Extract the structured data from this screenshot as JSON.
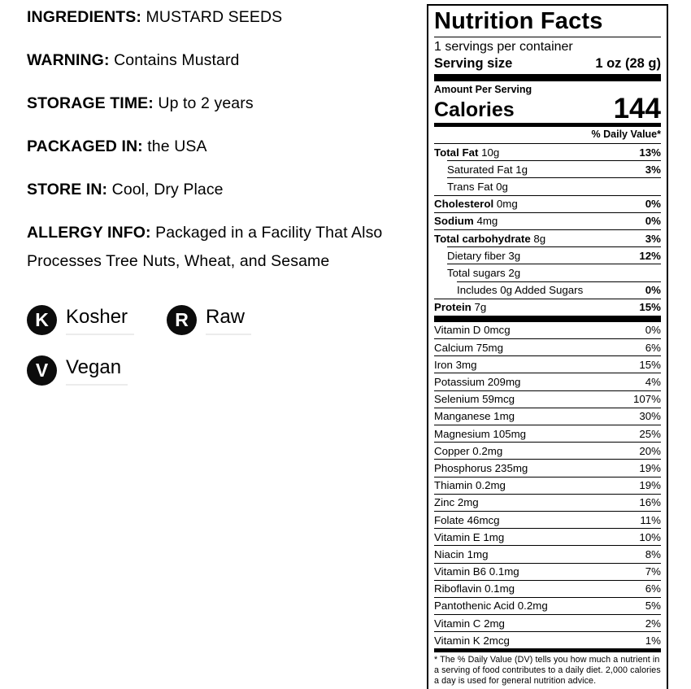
{
  "left_panel": {
    "info_lines": [
      {
        "key": "ingredients",
        "label": "INGREDIENTS:",
        "value": "MUSTARD SEEDS"
      },
      {
        "key": "warning",
        "label": "WARNING:",
        "value": "Contains Mustard"
      },
      {
        "key": "storage-time",
        "label": "STORAGE TIME:",
        "value": "Up to 2 years"
      },
      {
        "key": "packaged-in",
        "label": "PACKAGED IN:",
        "value": "the USA"
      },
      {
        "key": "store-in",
        "label": "STORE IN:",
        "value": "Cool, Dry Place"
      },
      {
        "key": "allergy-info",
        "label": "ALLERGY INFO:",
        "value": "Packaged in a Facility That Also Processes Tree Nuts, Wheat, and Sesame"
      }
    ],
    "badges": [
      {
        "key": "kosher",
        "letter": "K",
        "label": "Kosher"
      },
      {
        "key": "raw",
        "letter": "R",
        "label": "Raw"
      },
      {
        "key": "vegan",
        "letter": "V",
        "label": "Vegan"
      }
    ],
    "badge_color": "#0c0c0c"
  },
  "nutrition_label": {
    "title": "Nutrition Facts",
    "servings_per_container": "1 servings per container",
    "serving_size_label": "Serving size",
    "serving_size_value": "1 oz (28 g)",
    "amount_per_serving": "Amount Per Serving",
    "calories_label": "Calories",
    "calories_value": "144",
    "daily_value_header": "% Daily Value*",
    "main_rows": [
      {
        "bold": "Total Fat",
        "rest": " 10g",
        "percent": "13%",
        "indent": 0
      },
      {
        "bold": "",
        "rest": "Saturated Fat 1g",
        "percent": "3%",
        "indent": 1
      },
      {
        "bold": "",
        "rest": "Trans Fat 0g",
        "percent": "",
        "indent": 1
      },
      {
        "bold": "Cholesterol",
        "rest": " 0mg",
        "percent": "0%",
        "indent": 0
      },
      {
        "bold": "Sodium",
        "rest": " 4mg",
        "percent": "0%",
        "indent": 0
      },
      {
        "bold": "Total carbohydrate",
        "rest": " 8g",
        "percent": "3%",
        "indent": 0
      },
      {
        "bold": "",
        "rest": "Dietary fiber 3g",
        "percent": "12%",
        "indent": 1
      },
      {
        "bold": "",
        "rest": "Total sugars 2g",
        "percent": "",
        "indent": 1
      },
      {
        "bold": "",
        "rest": "Includes 0g Added Sugars",
        "percent": "0%",
        "indent": 2
      },
      {
        "bold": "Protein",
        "rest": " 7g",
        "percent": "15%",
        "indent": 0
      }
    ],
    "vitamin_rows": [
      {
        "name": "Vitamin D 0mcg",
        "percent": "0%"
      },
      {
        "name": "Calcium 75mg",
        "percent": "6%"
      },
      {
        "name": "Iron 3mg",
        "percent": "15%"
      },
      {
        "name": "Potassium 209mg",
        "percent": "4%"
      },
      {
        "name": "Selenium 59mcg",
        "percent": "107%"
      },
      {
        "name": "Manganese 1mg",
        "percent": "30%"
      },
      {
        "name": "Magnesium 105mg",
        "percent": "25%"
      },
      {
        "name": "Copper 0.2mg",
        "percent": "20%"
      },
      {
        "name": "Phosphorus 235mg",
        "percent": "19%"
      },
      {
        "name": "Thiamin 0.2mg",
        "percent": "19%"
      },
      {
        "name": "Zinc 2mg",
        "percent": "16%"
      },
      {
        "name": "Folate 46mcg",
        "percent": "11%"
      },
      {
        "name": "Vitamin E 1mg",
        "percent": "10%"
      },
      {
        "name": "Niacin 1mg",
        "percent": "8%"
      },
      {
        "name": "Vitamin B6 0.1mg",
        "percent": "7%"
      },
      {
        "name": "Riboflavin 0.1mg",
        "percent": "6%"
      },
      {
        "name": "Pantothenic Acid 0.2mg",
        "percent": "5%"
      },
      {
        "name": "Vitamin C 2mg",
        "percent": "2%"
      },
      {
        "name": "Vitamin K 2mcg",
        "percent": "1%"
      }
    ],
    "footnote": "* The % Daily Value (DV) tells you how much a nutrient in a serving of food contributes to a daily diet. 2,000 calories a day is used for general nutrition advice."
  }
}
